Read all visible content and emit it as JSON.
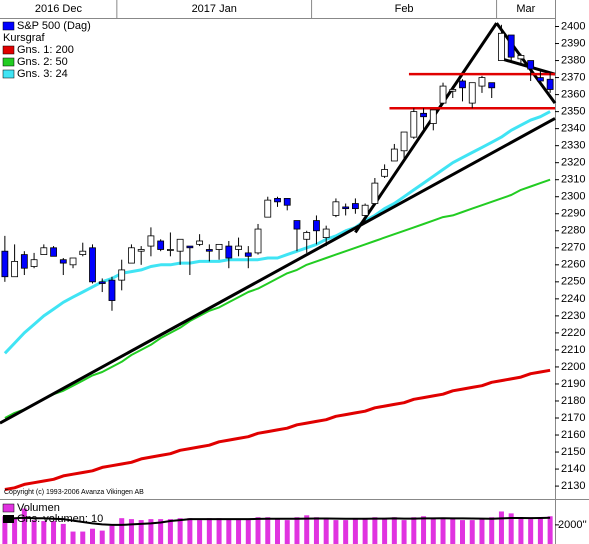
{
  "chart_data": {
    "type": "candlestick",
    "categories": [
      "2016 Dec",
      null,
      null,
      null,
      null,
      null,
      null,
      null,
      null,
      null,
      null,
      null,
      "2017 Jan",
      null,
      null,
      null,
      null,
      null,
      null,
      null,
      null,
      null,
      null,
      null,
      null,
      null,
      null,
      null,
      null,
      null,
      null,
      null,
      "Feb",
      null,
      null,
      null,
      null,
      null,
      null,
      null,
      null,
      null,
      null,
      null,
      null,
      null,
      null,
      null,
      null,
      null,
      null,
      "Mar",
      null,
      null,
      null,
      null,
      null
    ],
    "series": [
      {
        "name": "S&P 500 (Dag)",
        "color": "#0000ff",
        "up_color": "#ffffff",
        "open": [
          2268,
          2253,
          2266,
          2259,
          2266,
          2270,
          2263,
          2260,
          2266,
          2270,
          2250,
          2251,
          2251,
          2261,
          2268,
          2271,
          2274,
          2269,
          2268,
          2271,
          2272,
          2269,
          2269,
          2271,
          2269,
          2267,
          2267,
          2288,
          2299,
          2299,
          2286,
          2275,
          2286,
          2276,
          2289,
          2294,
          2296,
          2289,
          2296,
          2312,
          2321,
          2327,
          2335,
          2349,
          2343,
          2355,
          2362,
          2368,
          2355,
          2365,
          2367,
          2380,
          2395,
          2381,
          2380,
          2370,
          2369
        ],
        "high": [
          2277,
          2272,
          2268,
          2267,
          2272,
          2271,
          2264,
          2264,
          2273,
          2272,
          2252,
          2253,
          2263,
          2272,
          2271,
          2282,
          2275,
          2279,
          2275,
          2271,
          2278,
          2272,
          2272,
          2274,
          2276,
          2271,
          2284,
          2300,
          2300,
          2299,
          2286,
          2280,
          2289,
          2283,
          2299,
          2296,
          2299,
          2296,
          2311,
          2319,
          2331,
          2338,
          2352,
          2352,
          2351,
          2367,
          2365,
          2369,
          2367,
          2371,
          2367,
          2401,
          2395,
          2384,
          2380,
          2374,
          2373
        ],
        "low": [
          2250,
          2253,
          2254,
          2258,
          2266,
          2265,
          2254,
          2258,
          2265,
          2249,
          2244,
          2233,
          2245,
          2261,
          2260,
          2265,
          2268,
          2265,
          2260,
          2254,
          2271,
          2262,
          2263,
          2258,
          2265,
          2258,
          2266,
          2288,
          2294,
          2292,
          2268,
          2267,
          2272,
          2271,
          2288,
          2289,
          2290,
          2285,
          2296,
          2311,
          2321,
          2321,
          2334,
          2339,
          2339,
          2355,
          2358,
          2356,
          2352,
          2361,
          2358,
          2380,
          2380,
          2377,
          2368,
          2366,
          2361
        ],
        "close": [
          2253,
          2262,
          2258,
          2263,
          2270,
          2265,
          2261,
          2264,
          2268,
          2250,
          2249,
          2239,
          2257,
          2270,
          2269,
          2277,
          2269,
          2269,
          2275,
          2270,
          2274,
          2268,
          2272,
          2264,
          2271,
          2265,
          2281,
          2298,
          2297,
          2295,
          2281,
          2279,
          2280,
          2281,
          2297,
          2293,
          2293,
          2295,
          2308,
          2316,
          2328,
          2338,
          2350,
          2347,
          2351,
          2365,
          2363,
          2364,
          2367,
          2370,
          2364,
          2396,
          2382,
          2383,
          2375,
          2368,
          2363
        ]
      }
    ],
    "legend_heading": "Kursgraf",
    "moving_averages": [
      {
        "name": "Gns. 1: 200",
        "color": "#e00000",
        "values": [
          2128,
          2129,
          2131,
          2132,
          2133,
          2134,
          2136,
          2137,
          2138,
          2139,
          2141,
          2142,
          2143,
          2144,
          2146,
          2147,
          2148,
          2149,
          2151,
          2152,
          2153,
          2154,
          2156,
          2157,
          2158,
          2159,
          2161,
          2162,
          2163,
          2164,
          2166,
          2167,
          2168,
          2169,
          2171,
          2172,
          2173,
          2174,
          2176,
          2177,
          2178,
          2179,
          2181,
          2182,
          2183,
          2184,
          2186,
          2187,
          2188,
          2189,
          2191,
          2192,
          2193,
          2194,
          2196,
          2197,
          2198
        ]
      },
      {
        "name": "Gns. 2: 50",
        "color": "#22cc22",
        "values": [
          2170,
          2173,
          2175,
          2178,
          2181,
          2184,
          2186,
          2189,
          2192,
          2195,
          2197,
          2200,
          2203,
          2207,
          2210,
          2213,
          2217,
          2220,
          2223,
          2227,
          2230,
          2233,
          2235,
          2238,
          2241,
          2244,
          2246,
          2249,
          2252,
          2255,
          2257,
          2260,
          2262,
          2264,
          2266,
          2268,
          2270,
          2272,
          2274,
          2276,
          2278,
          2280,
          2282,
          2284,
          2286,
          2288,
          2289,
          2291,
          2293,
          2295,
          2297,
          2299,
          2301,
          2304,
          2306,
          2308,
          2310
        ]
      },
      {
        "name": "Gns. 3: 24",
        "color": "#40e4f4",
        "values": [
          2208,
          2214,
          2220,
          2225,
          2230,
          2234,
          2238,
          2241,
          2244,
          2247,
          2250,
          2252,
          2255,
          2256,
          2257,
          2259,
          2260,
          2260,
          2261,
          2261,
          2262,
          2262,
          2262,
          2263,
          2263,
          2263,
          2263,
          2264,
          2264,
          2266,
          2268,
          2270,
          2272,
          2275,
          2277,
          2280,
          2282,
          2286,
          2289,
          2293,
          2296,
          2300,
          2304,
          2308,
          2312,
          2316,
          2320,
          2323,
          2326,
          2329,
          2332,
          2335,
          2339,
          2342,
          2345,
          2347,
          2350
        ]
      }
    ],
    "ylim": [
      2123,
      2405
    ],
    "yticks": [
      2130,
      2140,
      2150,
      2160,
      2170,
      2180,
      2190,
      2200,
      2210,
      2220,
      2230,
      2240,
      2250,
      2260,
      2270,
      2280,
      2290,
      2300,
      2310,
      2320,
      2330,
      2340,
      2350,
      2360,
      2370,
      2380,
      2390,
      2400
    ],
    "annotations": [
      {
        "color": "#000000",
        "from": [
          -0.5,
          2167
        ],
        "to": [
          56.5,
          2346
        ]
      },
      {
        "color": "#000000",
        "from": [
          36,
          2279
        ],
        "to": [
          50.5,
          2402
        ]
      },
      {
        "color": "#000000",
        "from": [
          50.5,
          2402
        ],
        "to": [
          56.5,
          2355
        ]
      },
      {
        "color": "#000000",
        "from": [
          51,
          2381
        ],
        "to": [
          56.5,
          2372
        ]
      },
      {
        "color": "#e00000",
        "from": [
          41.5,
          2372
        ],
        "to": [
          56.5,
          2372
        ]
      },
      {
        "color": "#e00000",
        "from": [
          39.5,
          2352
        ],
        "to": [
          56.5,
          2352
        ]
      }
    ],
    "copyright": "Copyright (c) 1993-2006 Avanza Vikingen AB",
    "volume": {
      "name": "Volumen",
      "color": "#e033e0",
      "values": [
        2900,
        2700,
        3700,
        2500,
        2400,
        2400,
        2100,
        1300,
        1300,
        1600,
        1400,
        1900,
        2700,
        2600,
        2500,
        2600,
        2600,
        2600,
        2700,
        2700,
        2500,
        2700,
        2700,
        2600,
        2600,
        2600,
        2800,
        2800,
        2600,
        2500,
        2800,
        3000,
        2800,
        2600,
        2500,
        2500,
        2700,
        2600,
        2800,
        2700,
        2800,
        2500,
        2800,
        2900,
        2700,
        2700,
        2700,
        2500,
        2500,
        2600,
        2800,
        3400,
        3200,
        2700,
        2600,
        2700,
        2900
      ],
      "avg_name": "Gns. volumen: 10",
      "avg_color": "#000000",
      "avg_values": [
        2700,
        2700,
        2750,
        2700,
        2700,
        2650,
        2600,
        2450,
        2300,
        2150,
        2050,
        2000,
        2000,
        2050,
        2100,
        2150,
        2250,
        2400,
        2500,
        2600,
        2600,
        2600,
        2600,
        2600,
        2600,
        2600,
        2620,
        2640,
        2640,
        2630,
        2640,
        2660,
        2670,
        2670,
        2660,
        2650,
        2650,
        2650,
        2660,
        2660,
        2680,
        2660,
        2660,
        2680,
        2680,
        2690,
        2680,
        2680,
        2670,
        2660,
        2650,
        2680,
        2720,
        2720,
        2710,
        2720,
        2740
      ],
      "ylim": [
        0,
        4600
      ],
      "yticks": [
        {
          "value": 2000,
          "label": "2000''"
        }
      ]
    }
  }
}
